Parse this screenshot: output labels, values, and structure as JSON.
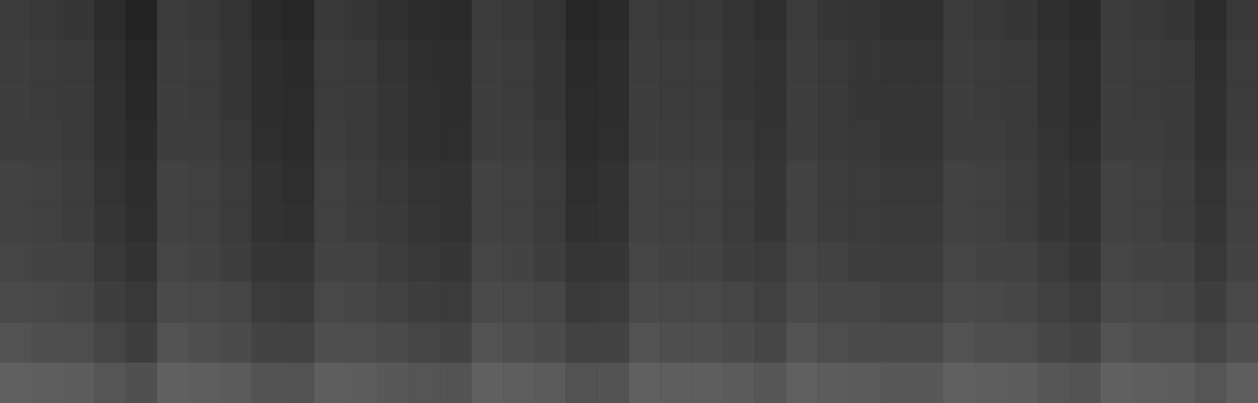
{
  "chart_data": {
    "type": "heatmap",
    "tick_labels": false,
    "grid": false,
    "zlim": [
      0,
      100
    ],
    "cells": [
      [
        37,
        35,
        34,
        27,
        22,
        37,
        35,
        32,
        26,
        24,
        35,
        34,
        30,
        27,
        26,
        37,
        35,
        32,
        24,
        26,
        37,
        35,
        35,
        32,
        29,
        37,
        34,
        32,
        30,
        30,
        37,
        35,
        34,
        29,
        26,
        37,
        35,
        34,
        27,
        35
      ],
      [
        39,
        37,
        36,
        29,
        24,
        39,
        37,
        34,
        28,
        26,
        37,
        36,
        32,
        29,
        28,
        39,
        37,
        34,
        26,
        28,
        39,
        37,
        37,
        34,
        31,
        39,
        36,
        34,
        32,
        32,
        39,
        37,
        36,
        31,
        28,
        39,
        37,
        36,
        29,
        37
      ],
      [
        39,
        37,
        36,
        30,
        25,
        39,
        37,
        34,
        28,
        27,
        37,
        36,
        33,
        30,
        28,
        39,
        37,
        34,
        27,
        28,
        39,
        37,
        37,
        34,
        31,
        39,
        36,
        34,
        33,
        33,
        39,
        37,
        36,
        31,
        28,
        39,
        37,
        36,
        30,
        37
      ],
      [
        39,
        38,
        36,
        30,
        26,
        39,
        38,
        35,
        29,
        27,
        38,
        36,
        33,
        30,
        29,
        39,
        38,
        35,
        27,
        29,
        39,
        38,
        38,
        35,
        32,
        39,
        36,
        35,
        33,
        33,
        39,
        38,
        36,
        32,
        29,
        39,
        38,
        36,
        30,
        38
      ],
      [
        41,
        40,
        38,
        32,
        28,
        41,
        40,
        37,
        31,
        29,
        40,
        38,
        35,
        32,
        31,
        41,
        40,
        37,
        29,
        31,
        41,
        40,
        40,
        37,
        34,
        41,
        38,
        37,
        35,
        35,
        41,
        40,
        38,
        34,
        31,
        41,
        40,
        38,
        32,
        40
      ],
      [
        41,
        40,
        38,
        33,
        29,
        41,
        40,
        37,
        31,
        30,
        40,
        38,
        36,
        33,
        31,
        41,
        40,
        37,
        30,
        31,
        41,
        40,
        40,
        37,
        34,
        41,
        38,
        37,
        36,
        36,
        41,
        40,
        38,
        34,
        31,
        41,
        40,
        38,
        33,
        40
      ],
      [
        43,
        42,
        41,
        35,
        31,
        43,
        42,
        39,
        34,
        33,
        42,
        41,
        38,
        35,
        34,
        43,
        42,
        39,
        33,
        34,
        43,
        42,
        42,
        39,
        37,
        43,
        41,
        39,
        38,
        38,
        43,
        42,
        41,
        37,
        34,
        43,
        42,
        41,
        35,
        42
      ],
      [
        46,
        45,
        44,
        39,
        35,
        46,
        45,
        43,
        37,
        36,
        45,
        44,
        41,
        39,
        37,
        46,
        45,
        43,
        36,
        37,
        46,
        45,
        45,
        43,
        40,
        46,
        44,
        43,
        41,
        41,
        46,
        45,
        44,
        40,
        37,
        46,
        45,
        44,
        39,
        45
      ],
      [
        51,
        49,
        48,
        43,
        39,
        51,
        49,
        47,
        42,
        41,
        49,
        48,
        46,
        43,
        42,
        51,
        49,
        47,
        41,
        42,
        51,
        49,
        49,
        47,
        44,
        51,
        48,
        47,
        46,
        46,
        51,
        49,
        48,
        44,
        42,
        51,
        49,
        48,
        43,
        49
      ],
      [
        60,
        59,
        58,
        53,
        50,
        60,
        59,
        57,
        52,
        51,
        59,
        58,
        55,
        53,
        52,
        60,
        59,
        57,
        51,
        52,
        60,
        59,
        59,
        57,
        54,
        60,
        58,
        57,
        55,
        55,
        60,
        59,
        58,
        54,
        52,
        60,
        59,
        58,
        53,
        59
      ]
    ]
  }
}
